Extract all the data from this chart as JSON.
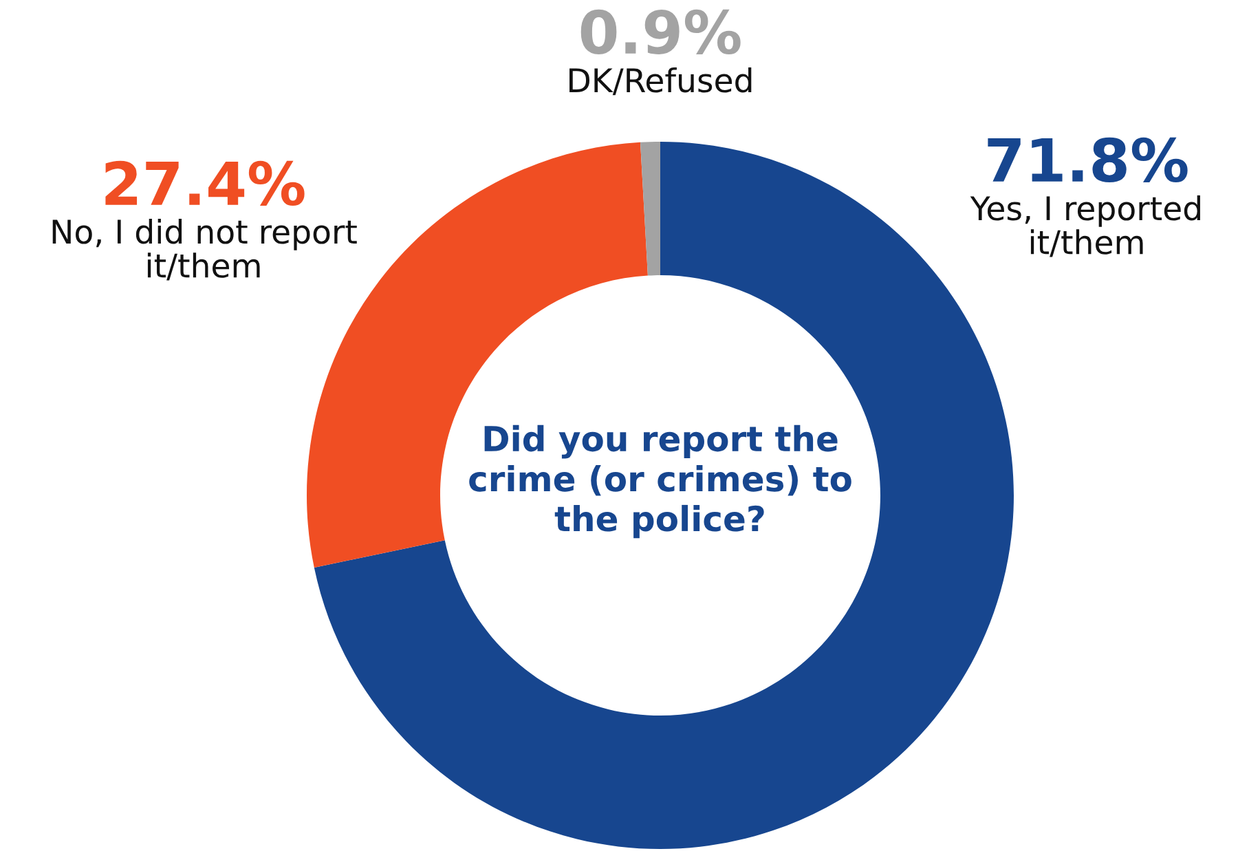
{
  "chart_data": {
    "type": "donut",
    "title": "Did you report the crime (or crimes) to the police?",
    "categories": [
      "Yes, I reported\nit/them",
      "No, I did not report\nit/them",
      "DK/Refused"
    ],
    "values": [
      71.8,
      27.4,
      0.9
    ],
    "colors": [
      "#17468f",
      "#f04e23",
      "#a3a3a3"
    ],
    "value_labels": [
      "71.8%",
      "27.4%",
      "0.9%"
    ]
  }
}
